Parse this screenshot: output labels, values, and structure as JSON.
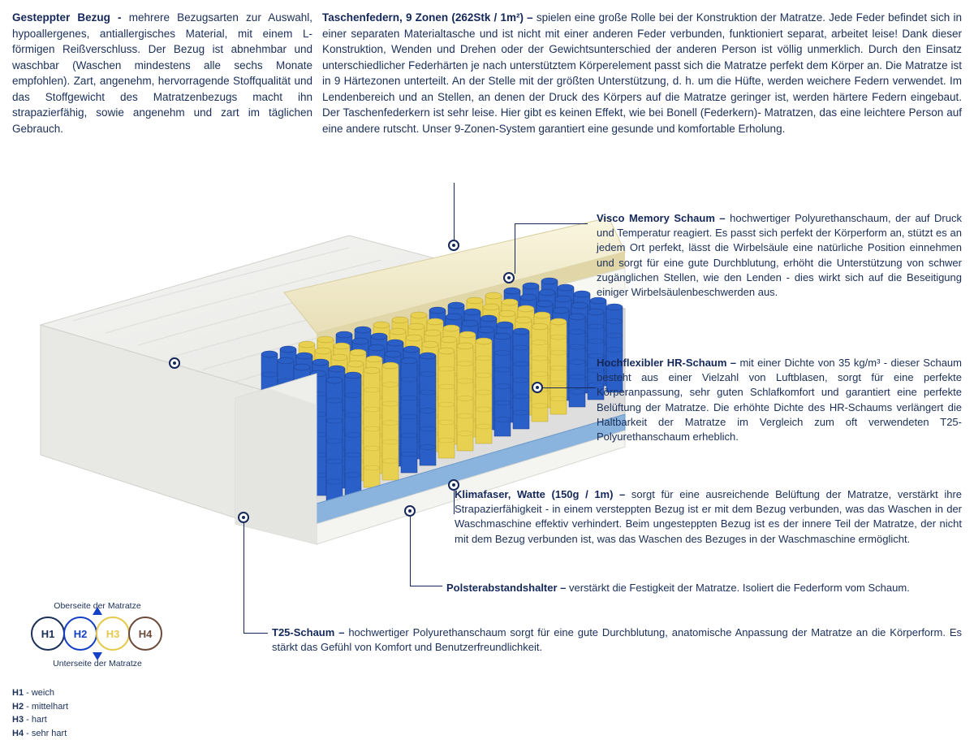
{
  "top": {
    "left": {
      "title": "Gesteppter Bezug - ",
      "body": "mehrere Bezugsarten zur Auswahl, hypoallergenes, antiallergisches Material, mit einem L-förmigen Reißverschluss. Der Bezug ist abnehmbar und waschbar (Waschen mindestens alle sechs Monate empfohlen). Zart, angenehm, hervorragende Stoffqualität und das Stoffgewicht des Matratzenbezugs macht ihn strapazierfähig, sowie angenehm und zart im täglichen Gebrauch."
    },
    "right": {
      "title": "Taschenfedern, 9 Zonen (262Stk / 1m²) – ",
      "body": "spielen eine große Rolle bei der Konstruktion der Matratze. Jede Feder befindet sich in einer separaten Materialtasche und ist nicht mit einer anderen Feder verbunden, funktioniert separat, arbeitet leise! Dank dieser Konstruktion, Wenden und Drehen oder der Gewichtsunterschied der anderen Person ist völlig unmerklich. Durch den Einsatz unterschiedlicher Federhärten je nach unterstütztem Körperelement passt sich die Matratze perfekt dem Körper an. Die Matratze ist in 9 Härtezonen unterteilt. An der Stelle mit der größten Unterstützung, d. h. um die Hüfte, werden weichere Federn verwendet. Im Lendenbereich und an Stellen, an denen der Druck des Körpers auf die Matratze geringer ist, werden härtere Federn eingebaut. Der Taschenfederkern ist sehr leise. Hier gibt es keinen Effekt, wie bei Bonell (Federkern)- Matratzen, das eine leichtere Person auf eine andere rutscht. Unser 9-Zonen-System garantiert eine gesunde und komfortable Erholung."
    }
  },
  "callouts": {
    "visco": {
      "title": "Visco Memory Schaum – ",
      "body": "hochwertiger Polyurethanschaum, der auf Druck und Temperatur reagiert. Es passt sich perfekt der Körperform an, stützt es an jedem Ort perfekt, lässt die Wirbelsäule eine natürliche Position einnehmen und sorgt für eine gute Durchblutung, erhöht die Unterstützung von schwer zugänglichen Stellen, wie den Lenden - dies wirkt sich auf die Beseitigung einiger Wirbelsäulenbeschwerden aus."
    },
    "hr": {
      "title": "Hochflexibler HR-Schaum – ",
      "body": "mit einer Dichte von 35 kg/m³ - dieser Schaum besteht aus einer Vielzahl von Luftblasen, sorgt für eine perfekte Körperanpassung, sehr guten Schlafkomfort und garantiert eine perfekte Belüftung der Matratze. Die erhöhte Dichte des HR-Schaums verlängert die Haltbarkeit der Matratze im Vergleich zum oft verwendeten T25-Polyurethanschaum erheblich."
    },
    "klima": {
      "title": "Klimafaser, Watte (150g / 1m) – ",
      "body": "sorgt für eine ausreichende Belüftung der Matratze, verstärkt ihre Strapazierfähigkeit - in einem versteppten Bezug ist er mit dem Bezug verbunden, was das Waschen in der Waschmaschine effektiv verhindert. Beim ungesteppten Bezug ist es der innere Teil der Matratze, der nicht mit dem Bezug verbunden ist, was das Waschen des Bezuges in der Waschmaschine ermöglicht."
    },
    "polster": {
      "title": "Polsterabstandshalter – ",
      "body": "verstärkt die Festigkeit der Matratze. Isoliert die Federform vom Schaum."
    },
    "t25": {
      "title": "T25-Schaum – ",
      "body": "hochwertiger Polyurethanschaum sorgt für eine gute Durchblutung, anatomische Anpassung der Matratze an die Körperform. Es stärkt das Gefühl von Komfort und Benutzerfreundlichkeit."
    }
  },
  "hardness": {
    "label_top": "Oberseite der Matratze",
    "label_bottom": "Unterseite der Matratze",
    "circles": [
      {
        "label": "H1",
        "color": "#1a2f5a"
      },
      {
        "label": "H2",
        "color": "#1440c8"
      },
      {
        "label": "H3",
        "color": "#e6c948"
      },
      {
        "label": "H4",
        "color": "#6b4a3a"
      }
    ],
    "legend": [
      {
        "k": "H1",
        "v": "- weich"
      },
      {
        "k": "H2",
        "v": "- mittelhart"
      },
      {
        "k": "H3",
        "v": "- hart"
      },
      {
        "k": "H4",
        "v": "- sehr hart"
      }
    ]
  },
  "diagram": {
    "cover_color": "#f0f0ee",
    "cover_shadow": "#d8d8d4",
    "foam_cream": "#f5eed2",
    "foam_white": "#fafaf5",
    "base_blue": "#7aa8d8",
    "spring_blue": "#2a5fc8",
    "spring_blue_dark": "#1a3a8a",
    "spring_yellow": "#e8d050",
    "spring_yellow_dark": "#b8a030",
    "marker_color": "#14285a"
  }
}
